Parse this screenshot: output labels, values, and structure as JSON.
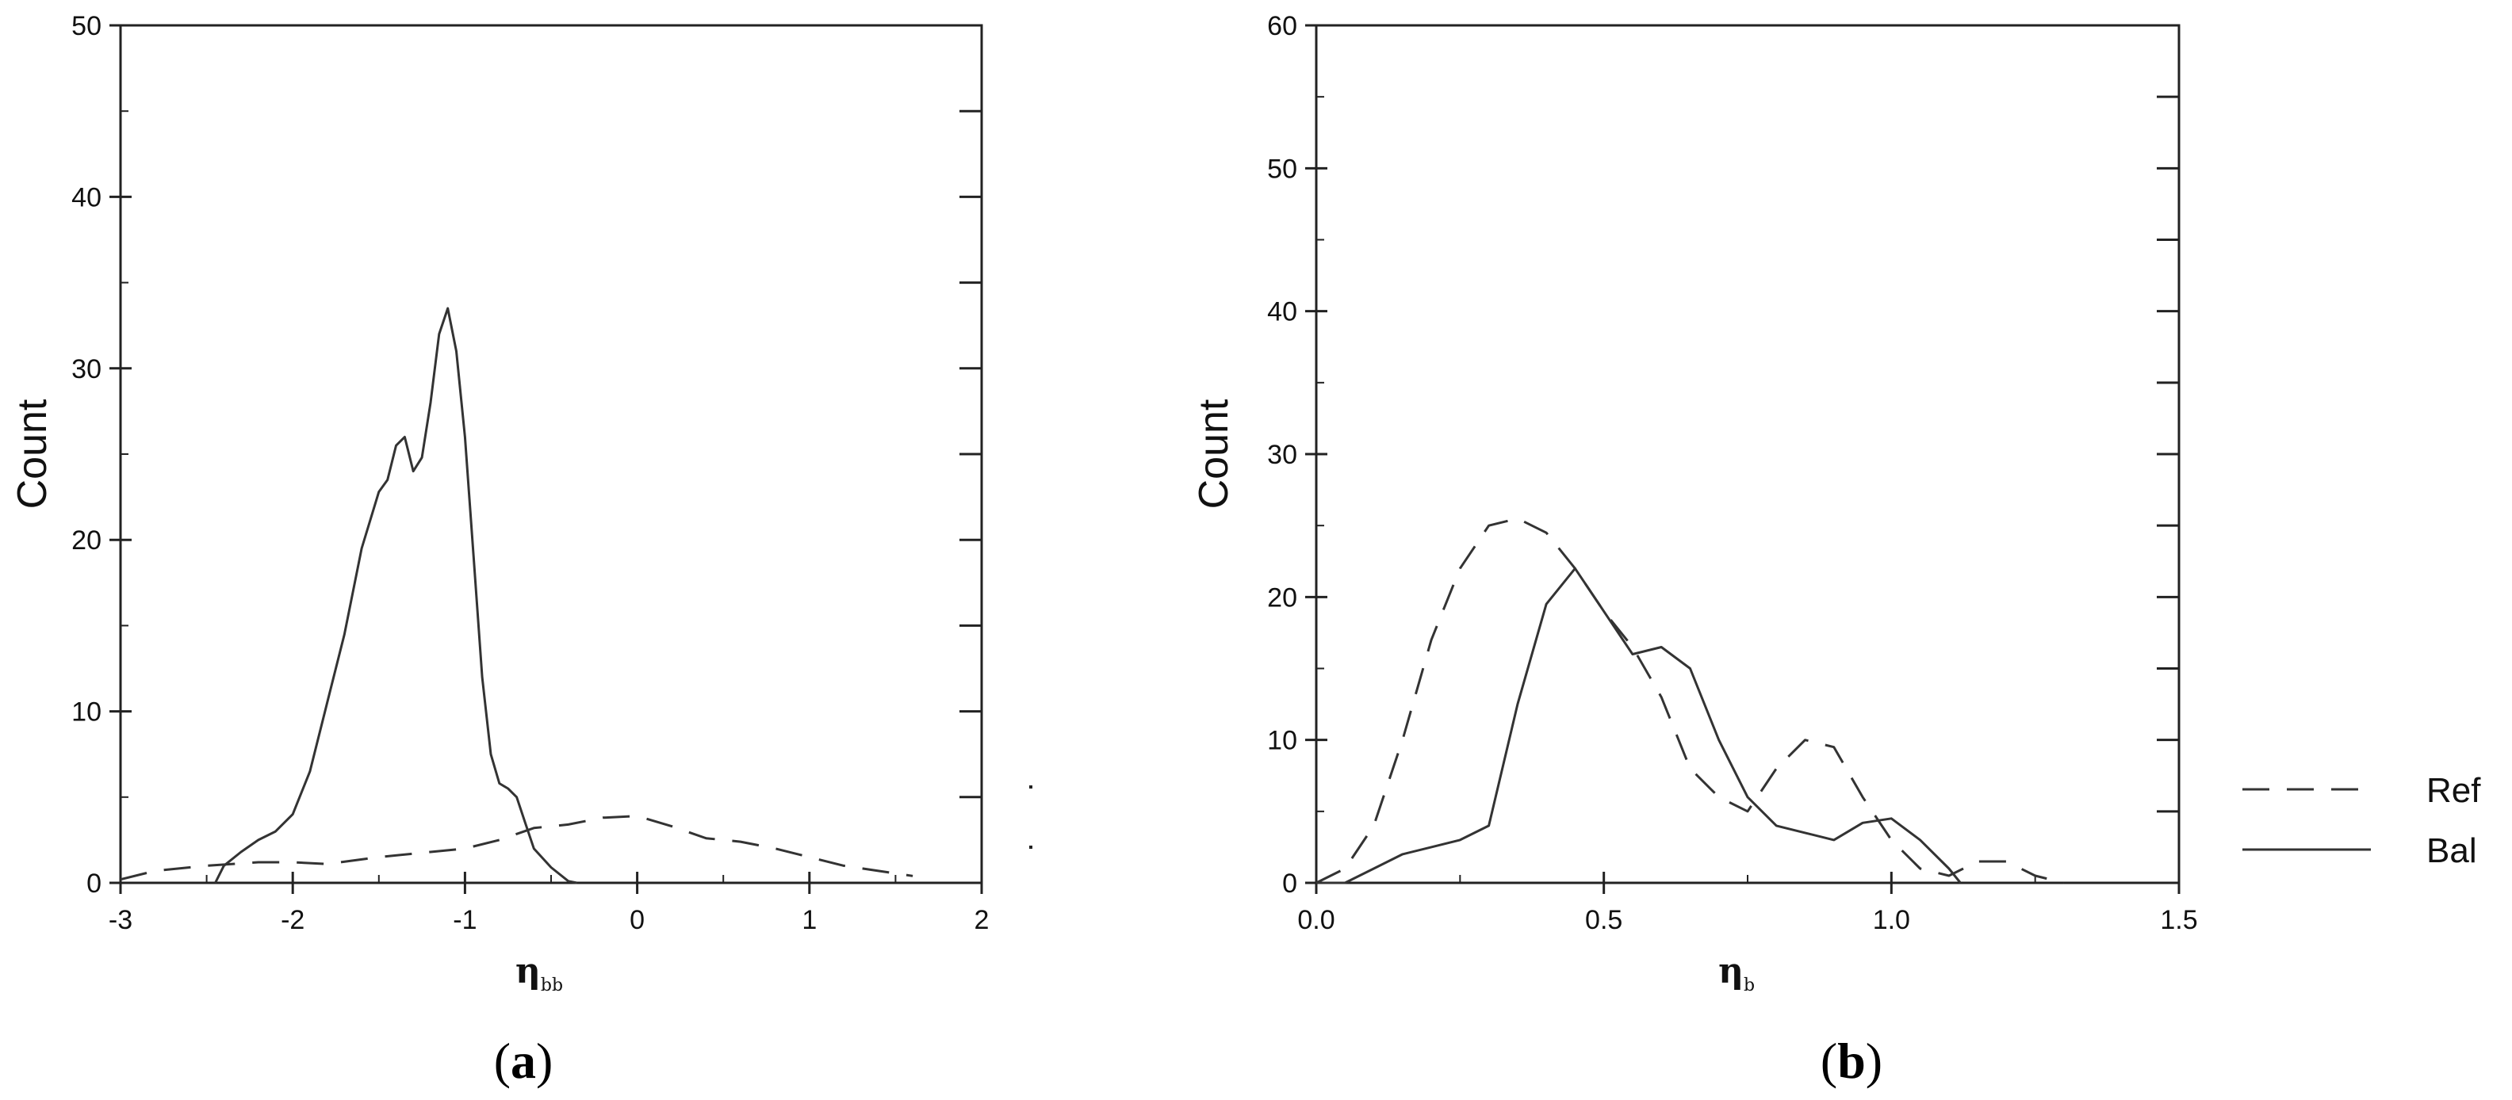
{
  "figure": {
    "captions": [
      {
        "open": "(",
        "letter": "a",
        "close": ")"
      },
      {
        "open": "(",
        "letter": "b",
        "close": ")"
      }
    ],
    "legend": [
      {
        "label": "Ref",
        "style": "dashed"
      },
      {
        "label": "Bal",
        "style": "solid"
      }
    ]
  },
  "chart_data": [
    {
      "type": "line",
      "ylabel": "Count",
      "xlabel_symbol": "η",
      "xlabel_subscript": "bb",
      "xlim": [
        -3,
        2
      ],
      "ylim": [
        0,
        50
      ],
      "xticks": [
        -3,
        -2,
        -1,
        0,
        1,
        2
      ],
      "xtick_labels": [
        "-3",
        "-2",
        "-1",
        "0",
        "1",
        "2"
      ],
      "yticks": [
        0,
        10,
        20,
        30,
        40,
        50
      ],
      "ytick_labels": [
        "0",
        "10",
        "20",
        "30",
        "40",
        "50"
      ],
      "grid": false,
      "series": [
        {
          "name": "Ref",
          "style": "dashed",
          "color": "#333333",
          "x": [
            -3.0,
            -2.8,
            -2.5,
            -2.2,
            -2.0,
            -1.8,
            -1.5,
            -1.2,
            -1.0,
            -0.8,
            -0.6,
            -0.4,
            -0.2,
            0.0,
            0.2,
            0.4,
            0.6,
            0.8,
            1.0,
            1.2,
            1.4,
            1.6
          ],
          "y": [
            0.2,
            0.7,
            1.0,
            1.2,
            1.2,
            1.1,
            1.5,
            1.8,
            2.0,
            2.5,
            3.2,
            3.4,
            3.8,
            3.9,
            3.3,
            2.6,
            2.4,
            2.0,
            1.5,
            1.0,
            0.7,
            0.4
          ]
        },
        {
          "name": "Bal",
          "style": "solid",
          "color": "#333333",
          "x": [
            -2.45,
            -2.4,
            -2.3,
            -2.2,
            -2.1,
            -2.0,
            -1.9,
            -1.8,
            -1.7,
            -1.6,
            -1.5,
            -1.45,
            -1.4,
            -1.35,
            -1.3,
            -1.25,
            -1.2,
            -1.15,
            -1.1,
            -1.05,
            -1.0,
            -0.95,
            -0.9,
            -0.85,
            -0.8,
            -0.75,
            -0.7,
            -0.65,
            -0.6,
            -0.5,
            -0.4,
            -0.35
          ],
          "y": [
            0.0,
            1.0,
            1.8,
            2.5,
            3.0,
            4.0,
            6.5,
            10.5,
            14.5,
            19.5,
            22.8,
            23.5,
            25.5,
            26.0,
            24.0,
            24.8,
            28.0,
            32.0,
            33.5,
            31.0,
            26.0,
            19.0,
            12.0,
            7.5,
            5.8,
            5.5,
            5.0,
            3.5,
            2.0,
            0.9,
            0.1,
            0.0
          ]
        }
      ]
    },
    {
      "type": "line",
      "ylabel": "Count",
      "xlabel_symbol": "η",
      "xlabel_subscript": "b",
      "xlim": [
        0.0,
        1.5
      ],
      "ylim": [
        0,
        60
      ],
      "xticks": [
        0.0,
        0.5,
        1.0,
        1.5
      ],
      "xtick_labels": [
        "0.0",
        "0.5",
        "1.0",
        "1.5"
      ],
      "yticks": [
        0,
        10,
        20,
        30,
        40,
        50,
        60
      ],
      "ytick_labels": [
        "0",
        "10",
        "20",
        "30",
        "40",
        "50",
        "60"
      ],
      "grid": false,
      "series": [
        {
          "name": "Ref",
          "style": "dashed",
          "color": "#333333",
          "x": [
            0.0,
            0.05,
            0.1,
            0.15,
            0.2,
            0.25,
            0.3,
            0.35,
            0.4,
            0.45,
            0.5,
            0.55,
            0.6,
            0.65,
            0.7,
            0.75,
            0.8,
            0.85,
            0.9,
            0.95,
            1.0,
            1.05,
            1.1,
            1.15,
            1.2,
            1.25,
            1.3
          ],
          "y": [
            0.0,
            1.0,
            4.0,
            10.0,
            17.0,
            22.0,
            25.0,
            25.5,
            24.5,
            22.0,
            19.0,
            16.5,
            13.0,
            8.0,
            6.0,
            5.0,
            8.0,
            10.0,
            9.5,
            6.0,
            3.0,
            1.0,
            0.5,
            1.5,
            1.5,
            0.5,
            0.0
          ]
        },
        {
          "name": "Bal",
          "style": "solid",
          "color": "#333333",
          "x": [
            0.0,
            0.05,
            0.1,
            0.15,
            0.2,
            0.25,
            0.3,
            0.35,
            0.4,
            0.45,
            0.5,
            0.55,
            0.6,
            0.65,
            0.7,
            0.75,
            0.8,
            0.85,
            0.9,
            0.95,
            1.0,
            1.05,
            1.1,
            1.12
          ],
          "y": [
            0.0,
            0.0,
            1.0,
            2.0,
            2.5,
            3.0,
            4.0,
            12.5,
            19.5,
            22.0,
            19.0,
            16.0,
            16.5,
            15.0,
            10.0,
            6.0,
            4.0,
            3.5,
            3.0,
            4.2,
            4.5,
            3.0,
            1.0,
            0.0
          ]
        }
      ]
    }
  ]
}
